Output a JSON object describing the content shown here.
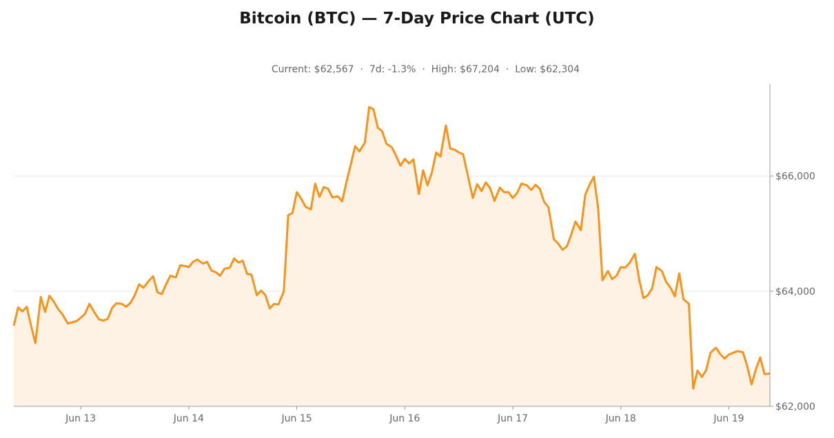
{
  "chart_data": {
    "type": "area",
    "title": "Bitcoin (BTC) — 7-Day Price Chart (UTC)",
    "stats": {
      "current": "Current: $62,567",
      "change_7d": "7d: -1.3%",
      "high": "High: $67,204",
      "low": "Low: $62,304"
    },
    "xlabel": "",
    "ylabel": "",
    "x_tick_labels": [
      "Jun 13",
      "Jun 14",
      "Jun 15",
      "Jun 16",
      "Jun 17",
      "Jun 18",
      "Jun 19"
    ],
    "y_ticks": [
      62000,
      64000,
      66000
    ],
    "y_tick_labels": [
      "$62,000",
      "$64,000",
      "$66,000"
    ],
    "ylim": [
      62000,
      67600
    ],
    "x_range_days": [
      12.38,
      19.38
    ],
    "y_axis_side": "right",
    "grid": "horizontal",
    "colors": {
      "line": "#f7931a",
      "fill": "#fdf2e4",
      "grid": "#e6e6e6",
      "axis": "#999999"
    },
    "series": [
      {
        "x": [
          12.38,
          12.42,
          12.46,
          12.5,
          12.54,
          12.58,
          12.63,
          12.67,
          12.71,
          12.75,
          12.79,
          12.83,
          12.88,
          12.92,
          12.96,
          13.0,
          13.04,
          13.08,
          13.13,
          13.17,
          13.21,
          13.25,
          13.29,
          13.33,
          13.38,
          13.42,
          13.46,
          13.5,
          13.54,
          13.58,
          13.63,
          13.67,
          13.71,
          13.75,
          13.79,
          13.83,
          13.88,
          13.92,
          13.96,
          14.0,
          14.04,
          14.08,
          14.13,
          14.17,
          14.21,
          14.25,
          14.29,
          14.33,
          14.38,
          14.42,
          14.46,
          14.5,
          14.54,
          14.58,
          14.63,
          14.67,
          14.71,
          14.75,
          14.79,
          14.83,
          14.88,
          14.92,
          14.96,
          15.0,
          15.04,
          15.08,
          15.13,
          15.17,
          15.21,
          15.25,
          15.29,
          15.33,
          15.38,
          15.42,
          15.46,
          15.5,
          15.54,
          15.58,
          15.63,
          15.67,
          15.71,
          15.75,
          15.79,
          15.83,
          15.88,
          15.92,
          15.96,
          16.0,
          16.04,
          16.08,
          16.13,
          16.17,
          16.21,
          16.25,
          16.29,
          16.33,
          16.38,
          16.42,
          16.46,
          16.5,
          16.54,
          16.58,
          16.63,
          16.67,
          16.71,
          16.75,
          16.79,
          16.83,
          16.88,
          16.92,
          16.96,
          17.0,
          17.04,
          17.08,
          17.13,
          17.17,
          17.21,
          17.25,
          17.29,
          17.33,
          17.38,
          17.42,
          17.46,
          17.5,
          17.54,
          17.58,
          17.63,
          17.67,
          17.71,
          17.75,
          17.79,
          17.83,
          17.88,
          17.92,
          17.96,
          18.0,
          18.04,
          18.08,
          18.13,
          18.17,
          18.21,
          18.25,
          18.29,
          18.33,
          18.38,
          18.42,
          18.46,
          18.5,
          18.54,
          18.58,
          18.63,
          18.67,
          18.71,
          18.75,
          18.79,
          18.83,
          18.88,
          18.92,
          18.96,
          19.0,
          19.04,
          19.08,
          19.13,
          19.17,
          19.21,
          19.25,
          19.29,
          19.33,
          19.38
        ],
        "values": [
          63400,
          63720,
          63650,
          63730,
          63400,
          63100,
          63900,
          63640,
          63920,
          63820,
          63690,
          63600,
          63440,
          63460,
          63480,
          63540,
          63610,
          63780,
          63620,
          63510,
          63490,
          63520,
          63710,
          63790,
          63780,
          63730,
          63800,
          63930,
          64120,
          64060,
          64180,
          64260,
          63980,
          63950,
          64120,
          64270,
          64240,
          64450,
          64440,
          64420,
          64510,
          64550,
          64480,
          64510,
          64360,
          64330,
          64270,
          64390,
          64410,
          64570,
          64500,
          64530,
          64300,
          64290,
          63930,
          64010,
          63930,
          63700,
          63780,
          63770,
          64000,
          65320,
          65360,
          65720,
          65610,
          65470,
          65420,
          65870,
          65640,
          65810,
          65780,
          65630,
          65650,
          65560,
          65900,
          66200,
          66520,
          66430,
          66580,
          67200,
          67160,
          66840,
          66780,
          66560,
          66500,
          66350,
          66180,
          66300,
          66220,
          66290,
          65690,
          66100,
          65840,
          66060,
          66410,
          66340,
          66880,
          66480,
          66460,
          66410,
          66380,
          66040,
          65620,
          65860,
          65740,
          65890,
          65790,
          65570,
          65800,
          65720,
          65720,
          65620,
          65710,
          65870,
          65840,
          65760,
          65850,
          65780,
          65550,
          65460,
          64900,
          64830,
          64720,
          64780,
          64980,
          65210,
          65060,
          65670,
          65850,
          65990,
          65450,
          64190,
          64350,
          64210,
          64270,
          64420,
          64410,
          64490,
          64650,
          64200,
          63880,
          63930,
          64050,
          64420,
          64350,
          64160,
          64060,
          63910,
          64310,
          63860,
          63780,
          62310,
          62620,
          62510,
          62630,
          62930,
          63020,
          62910,
          62830,
          62900,
          62930,
          62960,
          62940,
          62700,
          62380,
          62640,
          62850,
          62560,
          62570
        ]
      }
    ]
  }
}
